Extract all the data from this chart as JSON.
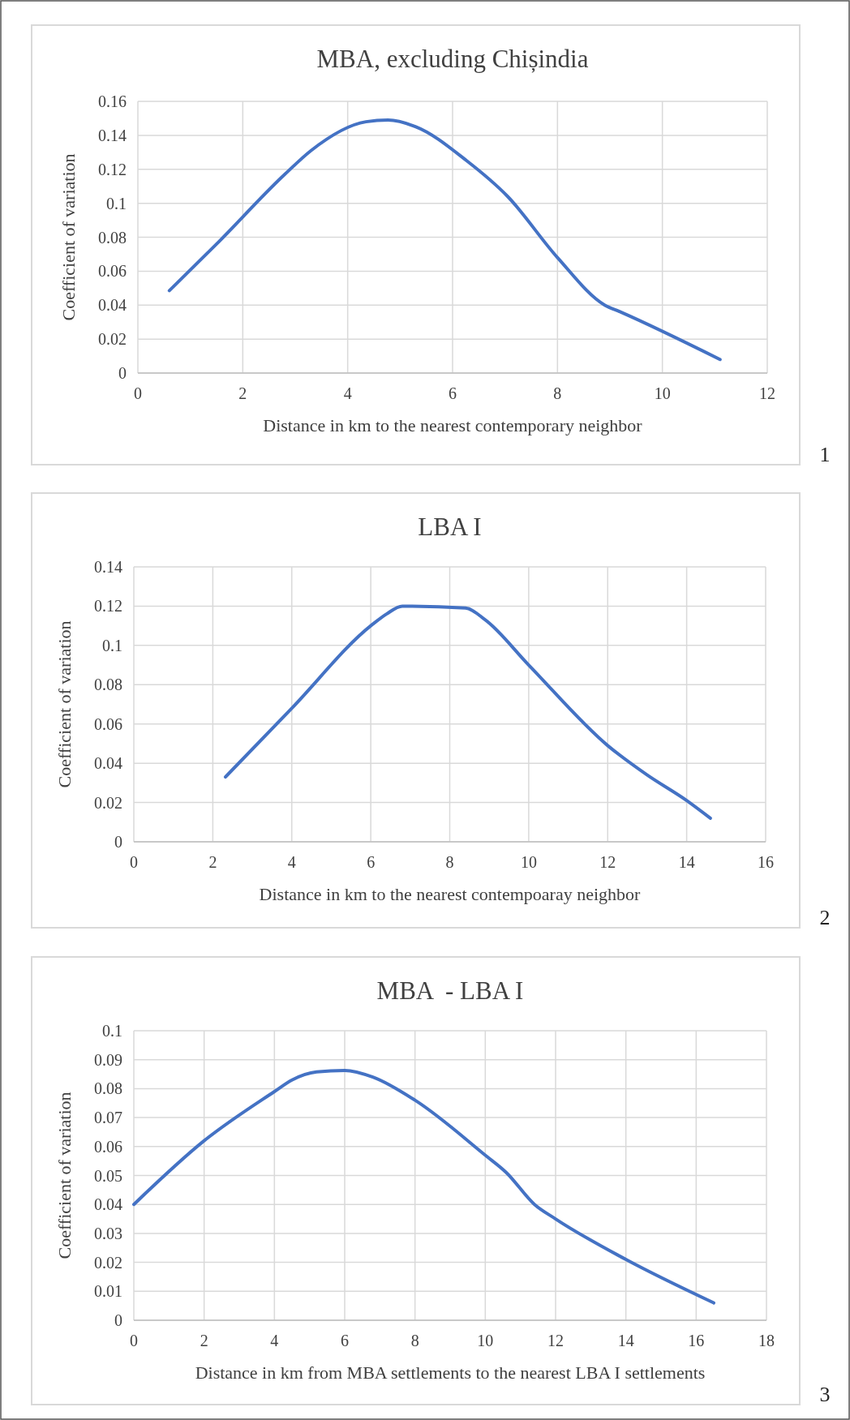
{
  "chart_data": [
    {
      "type": "line",
      "title": "MBA, excluding Chișindia",
      "xlabel": "Distance in km to the nearest contemporary neighbor",
      "ylabel": "Coefficient of variation",
      "annotations": [
        "1"
      ],
      "xlim": [
        0,
        12
      ],
      "xticks": [
        0,
        2,
        4,
        6,
        8,
        10,
        12
      ],
      "ylim": [
        0,
        0.16
      ],
      "yticks": [
        0,
        0.02,
        0.04,
        0.06,
        0.08,
        0.1,
        0.12,
        0.14,
        0.16
      ],
      "grid": true,
      "marker": "none",
      "line_style": "solid",
      "series": [
        {
          "color": "#4472c4",
          "x": [
            0.6,
            1.5,
            2.8,
            3.3,
            4.35,
            4.77,
            5.3,
            6.27,
            7.05,
            8.0,
            8.9,
            9.2,
            11.1
          ],
          "values": [
            0.0485,
            0.076,
            0.117,
            0.131,
            0.148,
            0.149,
            0.145,
            0.125,
            0.104,
            0.068,
            0.04,
            0.036,
            0.008
          ]
        }
      ]
    },
    {
      "type": "line",
      "title": "LBA I",
      "xlabel": "Distance in km to the nearest contempoaray neighbor",
      "ylabel": "Coefficient of variation",
      "annotations": [
        "2"
      ],
      "xlim": [
        0,
        16
      ],
      "xticks": [
        0,
        2,
        4,
        6,
        8,
        10,
        12,
        14,
        16
      ],
      "ylim": [
        0,
        0.14
      ],
      "yticks": [
        0,
        0.02,
        0.04,
        0.06,
        0.08,
        0.1,
        0.12,
        0.14
      ],
      "grid": true,
      "marker": "none",
      "line_style": "solid",
      "series": [
        {
          "color": "#4472c4",
          "x": [
            2.32,
            4,
            6.0,
            6.4,
            6.8,
            8.4,
            8.9,
            10,
            12,
            13,
            14,
            14.6
          ],
          "values": [
            0.033,
            0.068,
            0.11,
            0.116,
            0.12,
            0.119,
            0.113,
            0.09,
            0.049,
            0.034,
            0.021,
            0.012
          ]
        }
      ]
    },
    {
      "type": "line",
      "title": "MBA  - LBA I",
      "xlabel": "Distance in km from MBA settlements to the nearest LBA I settlements",
      "ylabel": "Coefficient of variation",
      "annotations": [
        "3"
      ],
      "xlim": [
        0,
        18
      ],
      "xticks": [
        0,
        2,
        4,
        6,
        8,
        10,
        12,
        14,
        16,
        18
      ],
      "ylim": [
        0,
        0.1
      ],
      "yticks": [
        0,
        0.01,
        0.02,
        0.03,
        0.04,
        0.05,
        0.06,
        0.07,
        0.08,
        0.09,
        0.1
      ],
      "grid": true,
      "marker": "none",
      "line_style": "solid",
      "series": [
        {
          "color": "#4472c4",
          "x": [
            0,
            2,
            4,
            4.5,
            5.2,
            6,
            6.8,
            8,
            10,
            10.6,
            11.4,
            12,
            14,
            16.5
          ],
          "values": [
            0.04,
            0.062,
            0.079,
            0.083,
            0.0858,
            0.0863,
            0.084,
            0.076,
            0.057,
            0.051,
            0.04,
            0.035,
            0.021,
            0.006
          ]
        }
      ]
    }
  ]
}
